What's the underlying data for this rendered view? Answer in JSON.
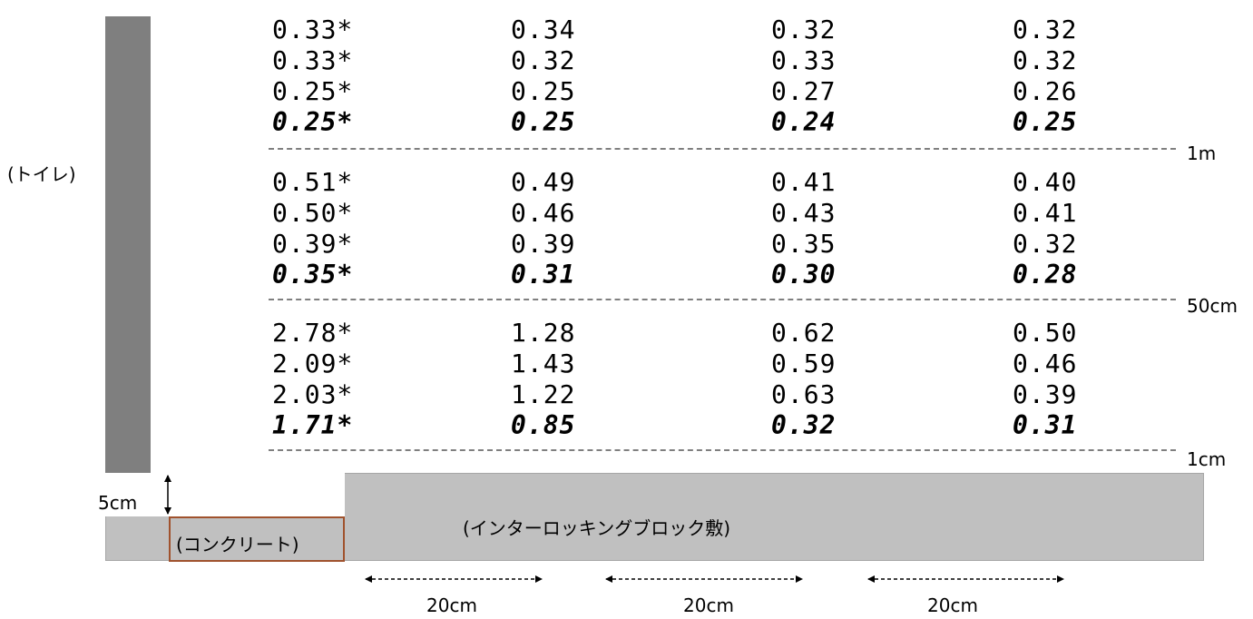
{
  "labels": {
    "toilet": "(トイレ)",
    "concrete": "(コンクリート)",
    "interlocking": "(インターロッキングブロック敷)",
    "depth_5cm": "5cm",
    "height_1m": "1m",
    "height_50cm": "50cm",
    "height_1cm": "1cm",
    "spacing": [
      "20cm",
      "20cm",
      "20cm"
    ]
  },
  "columns": [
    {
      "height_1m": [
        "0.33*",
        "0.33*",
        "0.25*",
        "0.25*"
      ],
      "height_50cm": [
        "0.51*",
        "0.50*",
        "0.39*",
        "0.35*"
      ],
      "height_1cm": [
        "2.78*",
        "2.09*",
        "2.03*",
        "1.71*"
      ]
    },
    {
      "height_1m": [
        "0.34",
        "0.32",
        "0.25",
        "0.25"
      ],
      "height_50cm": [
        "0.49",
        "0.46",
        "0.39",
        "0.31"
      ],
      "height_1cm": [
        "1.28",
        "1.43",
        "1.22",
        "0.85"
      ]
    },
    {
      "height_1m": [
        "0.32",
        "0.33",
        "0.27",
        "0.24"
      ],
      "height_50cm": [
        "0.41",
        "0.43",
        "0.35",
        "0.30"
      ],
      "height_1cm": [
        "0.62",
        "0.59",
        "0.63",
        "0.32"
      ]
    },
    {
      "height_1m": [
        "0.32",
        "0.32",
        "0.26",
        "0.25"
      ],
      "height_50cm": [
        "0.40",
        "0.41",
        "0.32",
        "0.28"
      ],
      "height_1cm": [
        "0.50",
        "0.46",
        "0.39",
        "0.31"
      ]
    }
  ]
}
